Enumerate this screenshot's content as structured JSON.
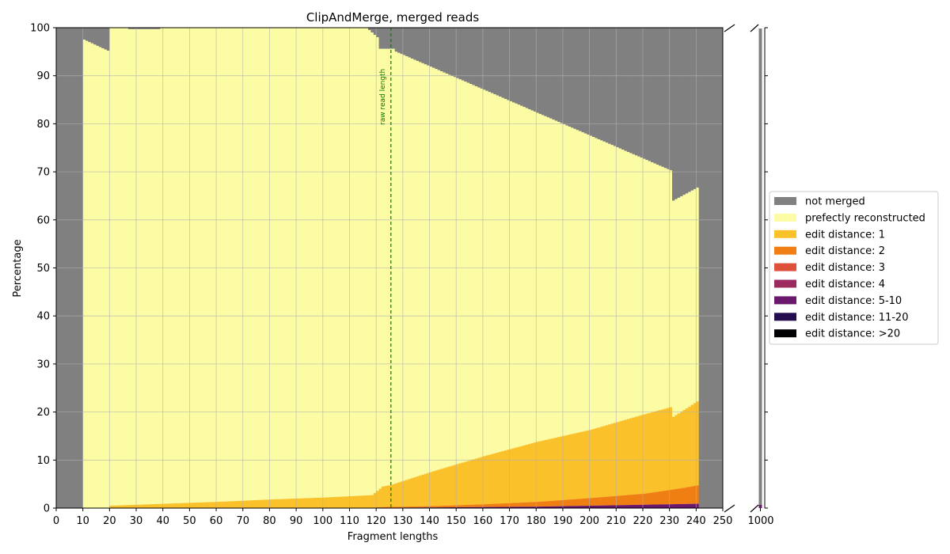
{
  "chart_data": {
    "type": "bar",
    "stacked": true,
    "title": "ClipAndMerge, merged reads",
    "xlabel": "Fragment lengths",
    "ylabel": "Percentage",
    "xlim": [
      0,
      250
    ],
    "ylim": [
      0,
      100
    ],
    "xticks": [
      "0",
      "10",
      "20",
      "30",
      "40",
      "50",
      "60",
      "70",
      "80",
      "90",
      "100",
      "110",
      "120",
      "130",
      "140",
      "150",
      "160",
      "170",
      "180",
      "190",
      "200",
      "210",
      "220",
      "230",
      "240",
      "250"
    ],
    "yticks": [
      "0",
      "10",
      "20",
      "30",
      "40",
      "50",
      "60",
      "70",
      "80",
      "90",
      "100"
    ],
    "broken_axis_tick": "1000",
    "grid": true,
    "legend_position": "right",
    "vline": {
      "x": 125,
      "label": "raw read length",
      "color": "#008000"
    },
    "series": [
      {
        "name": "not merged",
        "color": "#808080"
      },
      {
        "name": "prefectly reconstructed",
        "color": "#fcfca4"
      },
      {
        "name": "edit distance: 1",
        "color": "#fac12b"
      },
      {
        "name": "edit distance: 2",
        "color": "#f07f13"
      },
      {
        "name": "edit distance: 3",
        "color": "#dd513a"
      },
      {
        "name": "edit distance: 4",
        "color": "#9c2a60"
      },
      {
        "name": "edit distance: 5-10",
        "color": "#6a176e"
      },
      {
        "name": "edit distance: 11-20",
        "color": "#240c4f"
      },
      {
        "name": "edit distance: >20",
        "color": "#000004"
      }
    ],
    "merged_total": {
      "x_ranges": [
        {
          "x_start": 0,
          "x_end": 9,
          "value": 0
        },
        {
          "x_start": 10,
          "x_end": 19,
          "value_start": 97.5,
          "value_end": 95.2
        },
        {
          "x_start": 20,
          "x_end": 26,
          "value": 100
        },
        {
          "x_start": 27,
          "x_end": 38,
          "value": 99.7
        },
        {
          "x_start": 39,
          "x_end": 116,
          "value": 100
        },
        {
          "x_start": 117,
          "x_end": 120,
          "value_start": 99.5,
          "value_end": 98.0
        },
        {
          "x_start": 121,
          "x_end": 126,
          "value": 95.6
        },
        {
          "x_start": 127,
          "x_end": 230,
          "value_start": 95.0,
          "value_end": 70.3
        },
        {
          "x_start": 231,
          "x_end": 240,
          "value_start": 64.0,
          "value_end": 66.7
        },
        {
          "x_start": 241,
          "x_end": 250,
          "value": 0
        }
      ]
    },
    "edit_distance_1_top": [
      {
        "x": 20,
        "value": 0.5
      },
      {
        "x": 40,
        "value": 0.9
      },
      {
        "x": 60,
        "value": 1.3
      },
      {
        "x": 80,
        "value": 1.8
      },
      {
        "x": 100,
        "value": 2.2
      },
      {
        "x": 118,
        "value": 2.7
      },
      {
        "x": 122,
        "value": 4.5
      },
      {
        "x": 125,
        "value": 4.8
      },
      {
        "x": 140,
        "value": 7.5
      },
      {
        "x": 160,
        "value": 10.8
      },
      {
        "x": 180,
        "value": 13.8
      },
      {
        "x": 200,
        "value": 16.3
      },
      {
        "x": 220,
        "value": 19.5
      },
      {
        "x": 230,
        "value": 21.0
      },
      {
        "x": 231,
        "value": 19.0
      },
      {
        "x": 240,
        "value": 22.2
      }
    ],
    "edit_distance_2_top": [
      {
        "x": 120,
        "value": 0.2
      },
      {
        "x": 140,
        "value": 0.4
      },
      {
        "x": 160,
        "value": 0.8
      },
      {
        "x": 180,
        "value": 1.3
      },
      {
        "x": 200,
        "value": 2.1
      },
      {
        "x": 220,
        "value": 3.0
      },
      {
        "x": 230,
        "value": 3.8
      },
      {
        "x": 240,
        "value": 4.7
      }
    ],
    "higher_edit_distance_top": [
      {
        "x": 120,
        "value": 0.05
      },
      {
        "x": 180,
        "value": 0.3
      },
      {
        "x": 240,
        "value": 0.9
      }
    ],
    "length_1000": {
      "not_merged": 99.5,
      "edit_distance_5_10": 0.5
    }
  }
}
